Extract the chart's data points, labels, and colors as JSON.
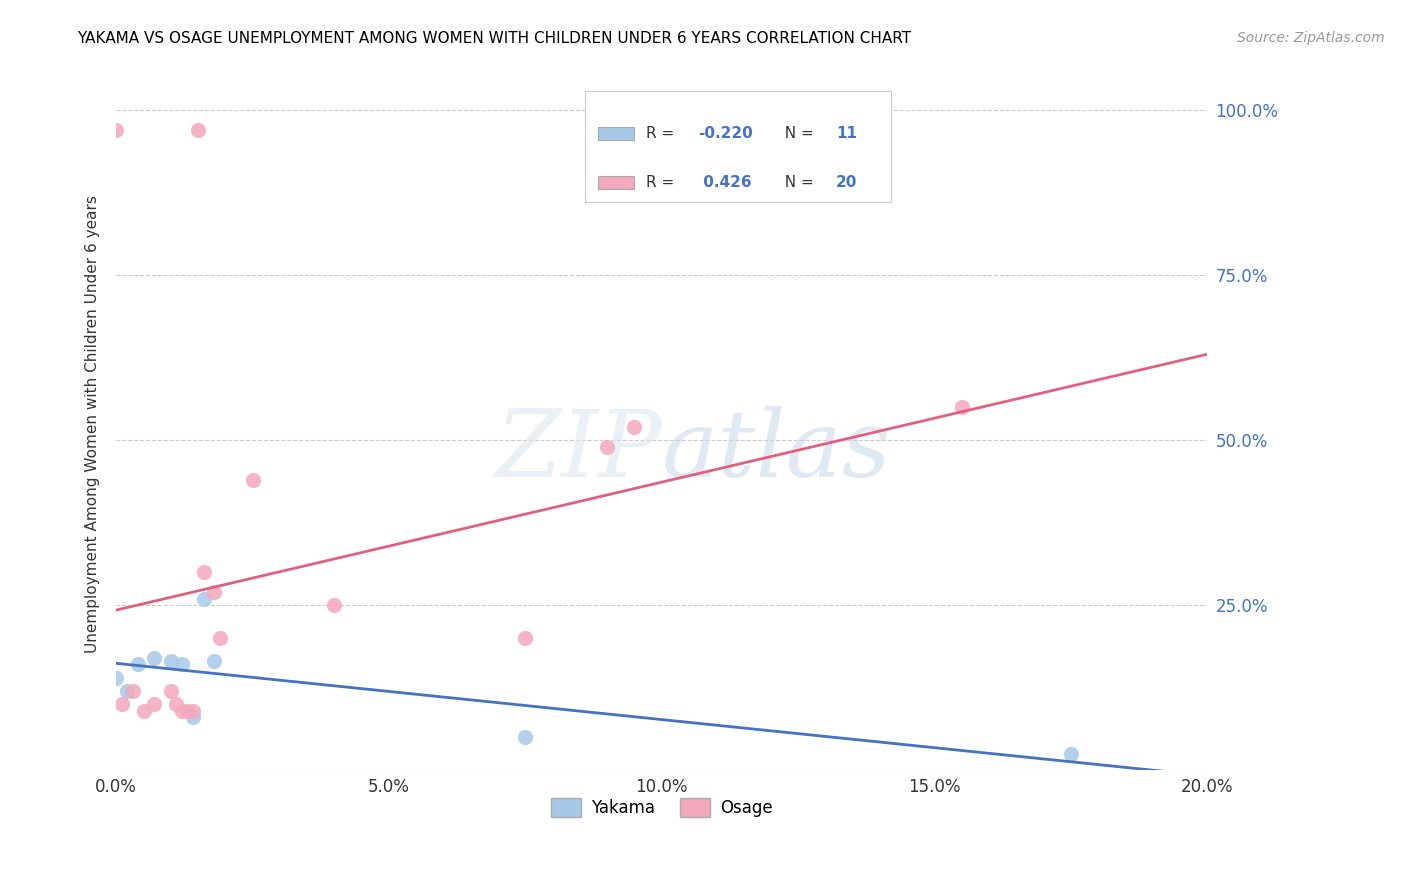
{
  "title": "YAKAMA VS OSAGE UNEMPLOYMENT AMONG WOMEN WITH CHILDREN UNDER 6 YEARS CORRELATION CHART",
  "source": "Source: ZipAtlas.com",
  "ylabel": "Unemployment Among Women with Children Under 6 years",
  "yakama_R": -0.22,
  "yakama_N": 11,
  "osage_R": 0.426,
  "osage_N": 20,
  "yakama_color": "#a8c8e8",
  "osage_color": "#f4a8bc",
  "yakama_line_color": "#4472c4",
  "osage_line_color": "#e06080",
  "yakama_x": [
    0.0,
    0.002,
    0.004,
    0.007,
    0.01,
    0.012,
    0.014,
    0.016,
    0.018,
    0.075,
    0.175
  ],
  "yakama_y": [
    0.14,
    0.12,
    0.16,
    0.17,
    0.165,
    0.16,
    0.08,
    0.26,
    0.165,
    0.05,
    0.025
  ],
  "osage_x": [
    0.0,
    0.001,
    0.003,
    0.005,
    0.007,
    0.01,
    0.011,
    0.012,
    0.013,
    0.014,
    0.015,
    0.016,
    0.018,
    0.019,
    0.025,
    0.04,
    0.075,
    0.09,
    0.095,
    0.155
  ],
  "osage_y": [
    0.97,
    0.1,
    0.12,
    0.09,
    0.1,
    0.12,
    0.1,
    0.09,
    0.09,
    0.09,
    0.97,
    0.3,
    0.27,
    0.2,
    0.44,
    0.25,
    0.2,
    0.49,
    0.52,
    0.55
  ],
  "xmin": 0.0,
  "xmax": 0.2,
  "ymin": 0.0,
  "ymax": 1.05,
  "xtick_vals": [
    0.0,
    0.05,
    0.1,
    0.15,
    0.2
  ],
  "xtick_labels": [
    "0.0%",
    "5.0%",
    "10.0%",
    "15.0%",
    "20.0%"
  ],
  "ytick_vals": [
    0.0,
    0.25,
    0.5,
    0.75,
    1.0
  ],
  "ytick_labels": [
    "",
    "25.0%",
    "50.0%",
    "75.0%",
    "100.0%"
  ]
}
